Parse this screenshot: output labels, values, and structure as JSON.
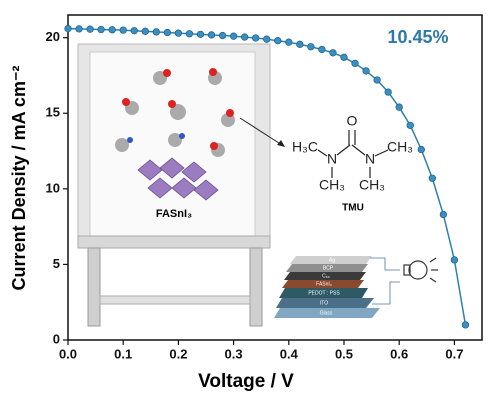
{
  "chart_data": {
    "type": "line",
    "xlabel": "Voltage / V",
    "ylabel": "Current Density / mA cm⁻²",
    "x": [
      0,
      0.02,
      0.04,
      0.06,
      0.08,
      0.1,
      0.12,
      0.14,
      0.16,
      0.18,
      0.2,
      0.22,
      0.24,
      0.26,
      0.28,
      0.3,
      0.32,
      0.34,
      0.36,
      0.38,
      0.4,
      0.42,
      0.44,
      0.46,
      0.48,
      0.5,
      0.52,
      0.54,
      0.56,
      0.58,
      0.6,
      0.62,
      0.64,
      0.66,
      0.68,
      0.7,
      0.72
    ],
    "series": [
      {
        "color": "#3a8fc2",
        "values": [
          20.6,
          20.58,
          20.56,
          20.54,
          20.52,
          20.5,
          20.46,
          20.42,
          20.38,
          20.34,
          20.3,
          20.26,
          20.22,
          20.18,
          20.14,
          20.1,
          20.04,
          19.98,
          19.9,
          19.8,
          19.7,
          19.56,
          19.4,
          19.22,
          19.0,
          18.7,
          18.3,
          17.8,
          17.2,
          16.4,
          15.4,
          14.2,
          12.6,
          10.7,
          8.3,
          5.3,
          1.0
        ]
      }
    ],
    "xlim": [
      0,
      0.75
    ],
    "ylim": [
      0,
      21.5
    ],
    "xticks": [
      {
        "value": 0,
        "label": "0.0"
      },
      0.1,
      0.2,
      0.3,
      0.4,
      0.5,
      0.6,
      0.7
    ],
    "yticks": [
      0,
      5,
      10,
      15,
      20
    ],
    "annotations": {
      "efficiency": "10.45%",
      "perovskite": "FASnI₃",
      "molecule": "TMU",
      "atoms": [
        "H₃C",
        "N",
        "O",
        "N",
        "CH₃",
        "CH₃",
        "CH₃"
      ],
      "layers": [
        "Ag",
        "BCP",
        "C₆₀",
        "FASnI₃",
        "PEDOT : PSS",
        "ITO",
        "Glass"
      ]
    }
  }
}
